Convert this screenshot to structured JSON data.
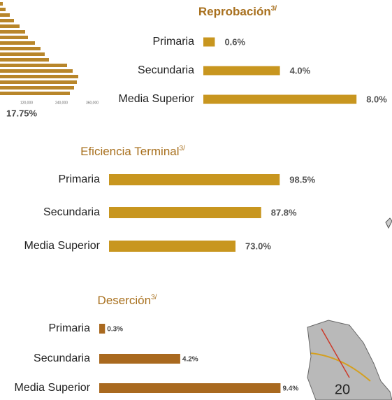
{
  "chart_data": [
    {
      "type": "hbar",
      "title": "Reprobación",
      "title_superscript": "3/",
      "categories": [
        "Primaria",
        "Secundaria",
        "Media Superior"
      ],
      "values": [
        0.6,
        4.0,
        8.0
      ],
      "value_labels": [
        "0.6%",
        "4.0%",
        "8.0%"
      ],
      "color": "#c8961f"
    },
    {
      "type": "hbar",
      "title": "Eficiencia Terminal",
      "title_superscript": "3/",
      "categories": [
        "Primaria",
        "Secundaria",
        "Media Superior"
      ],
      "values": [
        98.5,
        87.8,
        73.0
      ],
      "value_labels": [
        "98.5%",
        "87.8%",
        "73.0%"
      ],
      "color": "#c8961f"
    },
    {
      "type": "hbar",
      "title": "Deserción",
      "title_superscript": "3/",
      "categories": [
        "Primaria",
        "Secundaria",
        "Media Superior"
      ],
      "values": [
        0.3,
        4.2,
        9.4
      ],
      "value_labels": [
        "0.3%",
        "4.2%",
        "9.4%"
      ],
      "color": "#a9691f"
    }
  ],
  "pyramid": {
    "ticks": [
      "120,000",
      "240,000",
      "360,000"
    ],
    "label": "17.75%"
  },
  "page_number": "20"
}
